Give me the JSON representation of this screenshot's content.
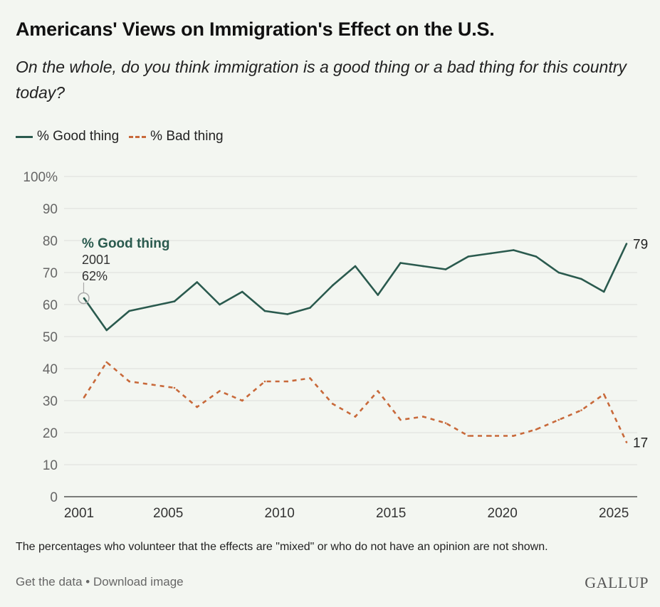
{
  "title": "Americans' Views on Immigration's Effect on the U.S.",
  "subtitle": "On the whole, do you think immigration is a good thing or a bad thing for this country today?",
  "note": "The percentages who volunteer that the effects are \"mixed\" or who do not have an opinion are not shown.",
  "links": {
    "get_data": "Get the data",
    "separator": " • ",
    "download": "Download image"
  },
  "logo": "GALLUP",
  "colors": {
    "good": "#2a5a4e",
    "bad": "#c8693a",
    "background": "#f3f6f1",
    "grid": "#dcdfda"
  },
  "chart_data": {
    "type": "line",
    "title": "Americans' Views on Immigration's Effect on the U.S.",
    "ylim": [
      0,
      100
    ],
    "yticks": [
      0,
      10,
      20,
      30,
      40,
      50,
      60,
      70,
      80,
      90,
      100
    ],
    "ytick_labels": [
      "0",
      "10",
      "20",
      "30",
      "40",
      "50",
      "60",
      "70",
      "80",
      "90",
      "100%"
    ],
    "xticks": [
      2001,
      2005,
      2010,
      2015,
      2020,
      2025
    ],
    "xtick_labels": [
      "2001",
      "2005",
      "2010",
      "2015",
      "2020",
      "2025"
    ],
    "grid": true,
    "legend": "top-left",
    "x": [
      2001,
      2002,
      2003,
      2005,
      2006,
      2007,
      2008,
      2009,
      2010,
      2011,
      2012,
      2013,
      2014,
      2015,
      2016,
      2017,
      2018,
      2019,
      2020,
      2021,
      2022,
      2023,
      2024,
      2025
    ],
    "series": [
      {
        "name": "% Good thing",
        "style": "solid",
        "values": [
          62,
          52,
          58,
          61,
          67,
          60,
          64,
          58,
          57,
          59,
          66,
          72,
          63,
          73,
          72,
          71,
          75,
          76,
          77,
          75,
          70,
          68,
          64,
          79
        ]
      },
      {
        "name": "% Bad thing",
        "style": "dashed",
        "values": [
          31,
          42,
          36,
          34,
          28,
          33,
          30,
          36,
          36,
          37,
          29,
          25,
          33,
          24,
          25,
          23,
          19,
          19,
          19,
          21,
          24,
          27,
          32,
          17
        ]
      }
    ],
    "annotation": {
      "series": "% Good thing",
      "label": "% Good thing",
      "year": "2001",
      "value": "62%"
    },
    "end_labels": [
      "79",
      "17"
    ]
  }
}
